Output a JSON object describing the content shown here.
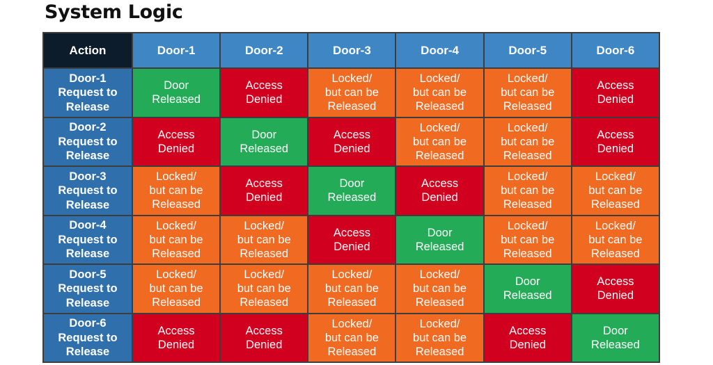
{
  "title": "System Logic",
  "table": {
    "corner_label": "Action",
    "columns": [
      "Door-1",
      "Door-2",
      "Door-3",
      "Door-4",
      "Door-5",
      "Door-6"
    ],
    "outcomes": {
      "released": "Door\nReleased",
      "denied": "Access\nDenied",
      "locked": "Locked/\nbut can be\nReleased"
    },
    "colors": {
      "header_bg": "#3f86c4",
      "row_header_bg": "#2f6fab",
      "corner_bg": "#0c1c2a",
      "released": "#23ab57",
      "denied": "#d2001f",
      "locked": "#f06a21"
    },
    "rows": [
      {
        "label": "Door-1\nRequest to\nRelease",
        "cells": [
          "released",
          "denied",
          "locked",
          "locked",
          "locked",
          "denied"
        ]
      },
      {
        "label": "Door-2\nRequest to\nRelease",
        "cells": [
          "denied",
          "released",
          "denied",
          "locked",
          "locked",
          "denied"
        ]
      },
      {
        "label": "Door-3\nRequest to\nRelease",
        "cells": [
          "locked",
          "denied",
          "released",
          "denied",
          "locked",
          "locked"
        ]
      },
      {
        "label": "Door-4\nRequest to\nRelease",
        "cells": [
          "locked",
          "locked",
          "denied",
          "released",
          "locked",
          "locked"
        ]
      },
      {
        "label": "Door-5\nRequest to\nRelease",
        "cells": [
          "locked",
          "locked",
          "locked",
          "locked",
          "released",
          "denied"
        ]
      },
      {
        "label": "Door-6\nRequest to\nRelease",
        "cells": [
          "denied",
          "denied",
          "locked",
          "locked",
          "denied",
          "released"
        ]
      }
    ]
  }
}
